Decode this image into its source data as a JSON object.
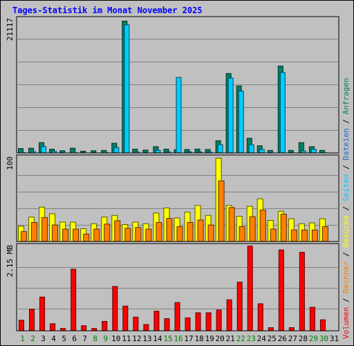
{
  "title": "Tages-Statistik im Monat November 2025",
  "colors": {
    "background": "#c0c0c0",
    "title": "#0000ff",
    "anfragen": "#008066",
    "dateien": "#2266cc",
    "seiten": "#00ccff",
    "besuche": "#ffff00",
    "rechner": "#ff8000",
    "volumen": "#ff0000",
    "weekend_label": "#008000",
    "weekday_label": "#000000"
  },
  "chart_data": [
    {
      "type": "bar",
      "panel": "top",
      "y_tick_label": "21117",
      "ylim": [
        0,
        21117
      ],
      "categories": [
        "1",
        "2",
        "3",
        "4",
        "5",
        "6",
        "7",
        "8",
        "9",
        "10",
        "11",
        "12",
        "13",
        "14",
        "15",
        "16",
        "17",
        "18",
        "19",
        "20",
        "21",
        "22",
        "23",
        "24",
        "25",
        "26",
        "27",
        "28",
        "29",
        "30",
        "31"
      ],
      "series": [
        {
          "name": "Anfragen",
          "values": [
            650,
            700,
            1600,
            550,
            300,
            700,
            200,
            300,
            350,
            1500,
            21117,
            550,
            400,
            950,
            550,
            450,
            500,
            550,
            500,
            1900,
            12700,
            10700,
            2300,
            1100,
            350,
            13900,
            350,
            1600,
            950,
            350,
            null
          ]
        },
        {
          "name": "Seiten",
          "values": [
            350,
            500,
            1300,
            550,
            300,
            350,
            200,
            300,
            350,
            1150,
            20850,
            400,
            300,
            700,
            450,
            12400,
            450,
            450,
            400,
            1600,
            12300,
            10200,
            1600,
            850,
            300,
            13200,
            300,
            600,
            850,
            350,
            null
          ]
        }
      ]
    },
    {
      "type": "bar",
      "panel": "middle",
      "y_tick_label": "100",
      "ylim": [
        0,
        100
      ],
      "categories": [
        "1",
        "2",
        "3",
        "4",
        "5",
        "6",
        "7",
        "8",
        "9",
        "10",
        "11",
        "12",
        "13",
        "14",
        "15",
        "16",
        "17",
        "18",
        "19",
        "20",
        "21",
        "22",
        "23",
        "24",
        "25",
        "26",
        "27",
        "28",
        "29",
        "30",
        "31"
      ],
      "series": [
        {
          "name": "Besuche",
          "values": [
            18,
            29,
            41,
            33,
            23,
            23,
            15,
            21,
            29,
            31,
            20,
            23,
            21,
            34,
            40,
            28,
            35,
            43,
            31,
            100,
            43,
            30,
            42,
            51,
            25,
            36,
            27,
            21,
            22,
            27,
            null
          ]
        },
        {
          "name": "Rechner",
          "values": [
            14,
            25,
            31,
            22,
            17,
            17,
            11,
            17,
            23,
            27,
            18,
            19,
            17,
            25,
            30,
            20,
            25,
            28,
            22,
            75,
            43,
            20,
            32,
            40,
            17,
            35,
            16,
            16,
            16,
            20,
            null
          ]
        }
      ]
    },
    {
      "type": "bar",
      "panel": "bottom",
      "y_tick_label": "2.15 MB",
      "ylim": [
        0,
        2.15
      ],
      "categories": [
        "1",
        "2",
        "3",
        "4",
        "5",
        "6",
        "7",
        "8",
        "9",
        "10",
        "11",
        "12",
        "13",
        "14",
        "15",
        "16",
        "17",
        "18",
        "19",
        "20",
        "21",
        "22",
        "23",
        "24",
        "25",
        "26",
        "27",
        "28",
        "29",
        "30",
        "31"
      ],
      "series": [
        {
          "name": "Volumen",
          "values": [
            0.26,
            0.54,
            0.85,
            0.17,
            0.05,
            1.56,
            0.12,
            0.05,
            0.23,
            1.12,
            0.62,
            0.34,
            0.15,
            0.49,
            0.3,
            0.71,
            0.32,
            0.45,
            0.45,
            0.52,
            0.78,
            1.23,
            2.15,
            0.68,
            0.07,
            2.05,
            0.07,
            1.99,
            0.59,
            0.27,
            null
          ]
        }
      ]
    }
  ],
  "x_labels": [
    {
      "text": "1",
      "weekend": true
    },
    {
      "text": "2",
      "weekend": true
    },
    {
      "text": "3",
      "weekend": false
    },
    {
      "text": "4",
      "weekend": false
    },
    {
      "text": "5",
      "weekend": false
    },
    {
      "text": "6",
      "weekend": false
    },
    {
      "text": "7",
      "weekend": false
    },
    {
      "text": "8",
      "weekend": true
    },
    {
      "text": "9",
      "weekend": true
    },
    {
      "text": "10",
      "weekend": false
    },
    {
      "text": "11",
      "weekend": false
    },
    {
      "text": "12",
      "weekend": false
    },
    {
      "text": "13",
      "weekend": false
    },
    {
      "text": "14",
      "weekend": false
    },
    {
      "text": "15",
      "weekend": true
    },
    {
      "text": "16",
      "weekend": true
    },
    {
      "text": "17",
      "weekend": false
    },
    {
      "text": "18",
      "weekend": false
    },
    {
      "text": "19",
      "weekend": false
    },
    {
      "text": "20",
      "weekend": false
    },
    {
      "text": "21",
      "weekend": false
    },
    {
      "text": "22",
      "weekend": true
    },
    {
      "text": "23",
      "weekend": true
    },
    {
      "text": "24",
      "weekend": false
    },
    {
      "text": "25",
      "weekend": false
    },
    {
      "text": "26",
      "weekend": false
    },
    {
      "text": "27",
      "weekend": false
    },
    {
      "text": "28",
      "weekend": false
    },
    {
      "text": "29",
      "weekend": true
    },
    {
      "text": "30",
      "weekend": true
    },
    {
      "text": "31",
      "weekend": false
    }
  ],
  "legend": [
    {
      "text": "Volumen",
      "color": "#ff0000"
    },
    {
      "text": " / ",
      "color": "#000000"
    },
    {
      "text": "Rechner",
      "color": "#ff8000"
    },
    {
      "text": " / ",
      "color": "#000000"
    },
    {
      "text": "Besuche",
      "color": "#ffff00"
    },
    {
      "text": " / ",
      "color": "#000000"
    },
    {
      "text": "Seiten",
      "color": "#00ccff"
    },
    {
      "text": " / ",
      "color": "#000000"
    },
    {
      "text": "Dateien",
      "color": "#2266cc"
    },
    {
      "text": " / ",
      "color": "#000000"
    },
    {
      "text": "Anfragen",
      "color": "#008066"
    }
  ]
}
